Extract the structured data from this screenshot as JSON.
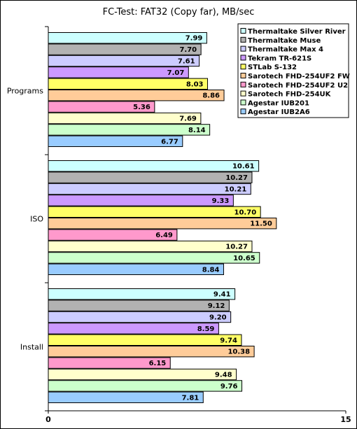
{
  "chart_data": {
    "type": "bar",
    "orientation": "horizontal",
    "title": "FC-Test: FAT32 (Copy far),  MB/sec",
    "categories": [
      "Programs",
      "ISO",
      "Install"
    ],
    "xlim": [
      0,
      15
    ],
    "x_ticks": [
      "0",
      "15"
    ],
    "legend_position": "top-right",
    "series": [
      {
        "name": "Thermaltake Silver River",
        "color": "#ccffff",
        "values": [
          7.99,
          10.61,
          9.41
        ],
        "labels": [
          "7.99",
          "10.61",
          "9.41"
        ]
      },
      {
        "name": "Thermaltake Muse",
        "color": "#b2b2b2",
        "values": [
          7.7,
          10.27,
          9.12
        ],
        "labels": [
          "7.70",
          "10.27",
          "9.12"
        ]
      },
      {
        "name": "Thermaltake Max 4",
        "color": "#ccccff",
        "values": [
          7.61,
          10.21,
          9.2
        ],
        "labels": [
          "7.61",
          "10.21",
          "9.20"
        ]
      },
      {
        "name": "Tekram TR-621S",
        "color": "#cc99ff",
        "values": [
          7.07,
          9.33,
          8.59
        ],
        "labels": [
          "7.07",
          "9.33",
          "8.59"
        ]
      },
      {
        "name": "STLab S-132",
        "color": "#ffff66",
        "values": [
          8.03,
          10.7,
          9.74
        ],
        "labels": [
          "8.03",
          "10.70",
          "9.74"
        ]
      },
      {
        "name": "Sarotech FHD-254UF2 FW",
        "color": "#ffcc99",
        "values": [
          8.86,
          11.5,
          10.38
        ],
        "labels": [
          "8.86",
          "11.50",
          "10.38"
        ]
      },
      {
        "name": "Sarotech FHD-254UF2 U2",
        "color": "#ff99cc",
        "values": [
          5.36,
          6.49,
          6.15
        ],
        "labels": [
          "5.36",
          "6.49",
          "6.15"
        ]
      },
      {
        "name": "Sarotech FHD-254UK",
        "color": "#ffffcc",
        "values": [
          7.69,
          10.27,
          9.48
        ],
        "labels": [
          "7.69",
          "10.27",
          "9.48"
        ]
      },
      {
        "name": "Agestar IUB201",
        "color": "#ccffcc",
        "values": [
          8.14,
          10.65,
          9.76
        ],
        "labels": [
          "8.14",
          "10.65",
          "9.76"
        ]
      },
      {
        "name": "Agestar IUB2A6",
        "color": "#99ccff",
        "values": [
          6.77,
          8.84,
          7.81
        ],
        "labels": [
          "6.77",
          "8.84",
          "7.81"
        ]
      }
    ]
  }
}
